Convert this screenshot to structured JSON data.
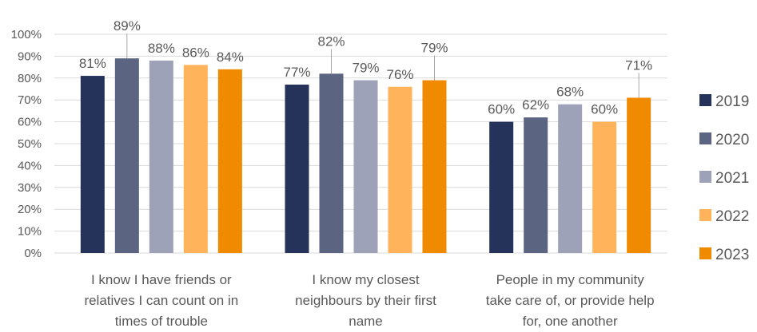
{
  "chart_data": {
    "type": "bar",
    "title": "",
    "xlabel": "",
    "ylabel": "",
    "ylim": [
      0,
      100
    ],
    "yticks": [
      0,
      10,
      20,
      30,
      40,
      50,
      60,
      70,
      80,
      90,
      100
    ],
    "ytick_labels": [
      "0%",
      "10%",
      "20%",
      "30%",
      "40%",
      "50%",
      "60%",
      "70%",
      "80%",
      "90%",
      "100%"
    ],
    "grid": true,
    "legend_position": "right",
    "categories": [
      [
        "I know I have friends or",
        "relatives I can count on in",
        "times of trouble"
      ],
      [
        "I know my closest",
        "neighbours by their first",
        "name"
      ],
      [
        "People in my community",
        "take care of, or provide help",
        "for, one another"
      ]
    ],
    "series": [
      {
        "name": "2019",
        "color": "#253259",
        "values": [
          81,
          77,
          60
        ],
        "labels": [
          "81%",
          "77%",
          "60%"
        ]
      },
      {
        "name": "2020",
        "color": "#5b6480",
        "values": [
          89,
          82,
          62
        ],
        "labels": [
          "89%",
          "82%",
          "62%"
        ]
      },
      {
        "name": "2021",
        "color": "#9ea2b8",
        "values": [
          88,
          79,
          68
        ],
        "labels": [
          "88%",
          "79%",
          "68%"
        ]
      },
      {
        "name": "2022",
        "color": "#ffb35a",
        "values": [
          86,
          76,
          60
        ],
        "labels": [
          "86%",
          "76%",
          "60%"
        ]
      },
      {
        "name": "2023",
        "color": "#f08a00",
        "values": [
          84,
          79,
          71
        ],
        "labels": [
          "84%",
          "79%",
          "71%"
        ]
      }
    ]
  }
}
